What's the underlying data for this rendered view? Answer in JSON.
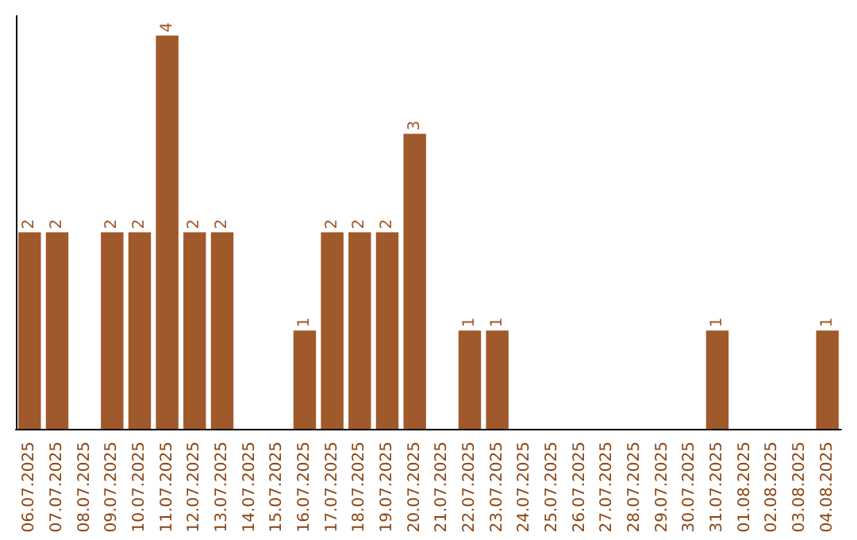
{
  "chart_data": {
    "type": "bar",
    "categories": [
      "06.07.2025",
      "07.07.2025",
      "08.07.2025",
      "09.07.2025",
      "10.07.2025",
      "11.07.2025",
      "12.07.2025",
      "13.07.2025",
      "14.07.2025",
      "15.07.2025",
      "16.07.2025",
      "17.07.2025",
      "18.07.2025",
      "19.07.2025",
      "20.07.2025",
      "21.07.2025",
      "22.07.2025",
      "23.07.2025",
      "24.07.2025",
      "25.07.2025",
      "26.07.2025",
      "27.07.2025",
      "28.07.2025",
      "29.07.2025",
      "30.07.2025",
      "31.07.2025",
      "01.08.2025",
      "02.08.2025",
      "03.08.2025",
      "04.08.2025"
    ],
    "values": [
      2,
      2,
      0,
      2,
      2,
      4,
      2,
      2,
      0,
      0,
      1,
      2,
      2,
      2,
      3,
      0,
      1,
      1,
      0,
      0,
      0,
      0,
      0,
      0,
      0,
      1,
      0,
      0,
      0,
      1
    ],
    "value_labels": [
      "2",
      "2",
      null,
      "2",
      "2",
      "4",
      "2",
      "2",
      null,
      null,
      "1",
      "2",
      "2",
      "2",
      "3",
      null,
      "1",
      "1",
      null,
      null,
      null,
      null,
      null,
      null,
      null,
      "1",
      null,
      null,
      null,
      "1"
    ],
    "color": "#a0592a",
    "ylim": [
      0,
      4.2
    ],
    "tick_labels": "x"
  }
}
